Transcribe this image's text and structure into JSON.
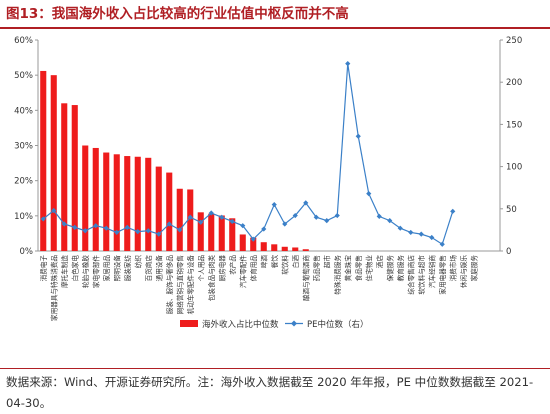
{
  "title": "图13：我国海外收入占比较高的行业估值中枢反而并不高",
  "source": "数据来源：Wind、开源证券研究所。注：海外收入数据截至 2020 年年报，PE 中位数数据截至 2021-04-30。",
  "colors": {
    "bar": "#ee1c1c",
    "line": "#3b80c8",
    "accent": "#b01f24"
  },
  "chart_data": {
    "type": "bar",
    "grid": false,
    "legend_position": "bottom",
    "y_left": {
      "range": [
        0,
        60
      ],
      "ticks": [
        "0%",
        "10%",
        "20%",
        "30%",
        "40%",
        "50%",
        "60%"
      ]
    },
    "y_right": {
      "range": [
        0,
        250
      ],
      "ticks": [
        "0",
        "50",
        "100",
        "150",
        "200",
        "250"
      ]
    },
    "categories": [
      "消费电子",
      "家用器具与特殊消费品",
      "摩托车制造",
      "白色家电",
      "轮胎与橡胶",
      "家电零部件",
      "家居用品",
      "照明设备",
      "服装家纺",
      "纺织",
      "百货商店",
      "通用设备",
      "服装、服饰与奢侈品",
      "网络营销与直销零售",
      "机动车零配件与设备",
      "个人用品",
      "包装食品与肉类",
      "厨房电器",
      "农产品",
      "汽车零配件",
      "体育用品",
      "啤酒",
      "餐饮",
      "软饮料",
      "白酒",
      "酿酒与葡萄酒商",
      "药品零售",
      "超市",
      "特殊消费服务",
      "黄金珠宝",
      "食品零售",
      "住宅物业",
      "酒店",
      "保健服务",
      "教育服务",
      "综合零售商店",
      "软饮料与超市",
      "汽车经销商",
      "家用电器零售",
      "消费市场",
      "休闲与娱乐",
      "家庭服务",
      "食品分销商",
      "酒店、度假村与游轮"
    ],
    "series": [
      {
        "name": "海外收入占比中位数",
        "type": "bar",
        "axis": "left",
        "unit": "%",
        "values": [
          51.2,
          50,
          42,
          41.5,
          30,
          29.3,
          28,
          27.5,
          27,
          26.8,
          26.5,
          24,
          22.3,
          17.7,
          17.5,
          11,
          10.6,
          10.1,
          9.3,
          4.7,
          3.8,
          2.5,
          1.9,
          1.2,
          1,
          0.5,
          0,
          0,
          0,
          0,
          0,
          0,
          0,
          0,
          0,
          0,
          0,
          0,
          0,
          0,
          0,
          0,
          0,
          0
        ]
      },
      {
        "name": "PE中位数（右）",
        "type": "line",
        "axis": "right",
        "values": [
          38,
          48,
          32,
          28,
          24,
          30,
          27,
          22,
          28,
          23,
          24,
          20,
          32,
          25,
          40,
          34,
          45,
          40,
          35,
          30,
          14,
          26,
          55,
          32,
          42,
          57,
          40,
          36,
          42,
          222,
          136,
          68,
          41,
          36,
          27,
          22,
          20,
          16,
          8,
          47,
          0,
          0,
          0,
          0
        ]
      }
    ]
  }
}
